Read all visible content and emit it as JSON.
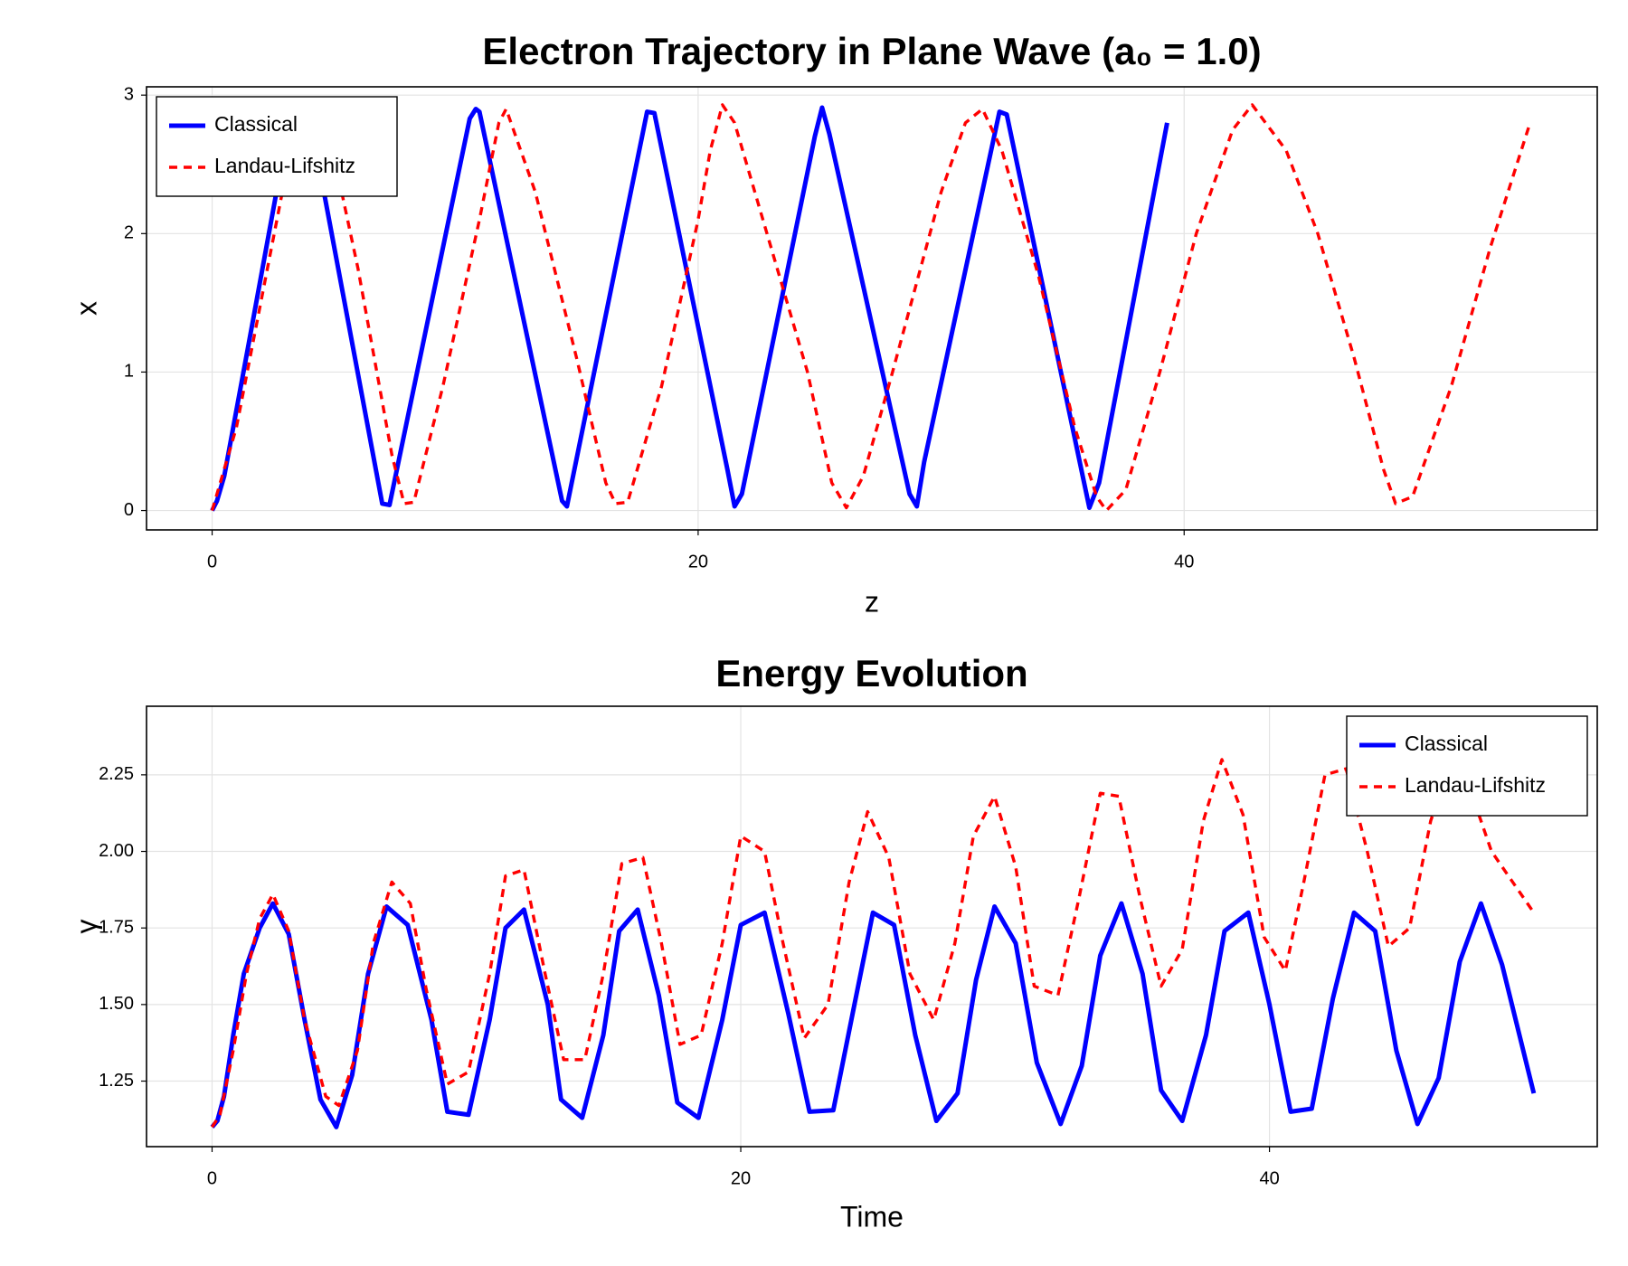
{
  "chart_data": [
    {
      "type": "line",
      "title": "Electron Trajectory in Plane Wave (a₀ = 1.0)",
      "x_label": "z",
      "y_label": "x",
      "xlim": [
        -2.7,
        57.0
      ],
      "ylim": [
        -0.14,
        3.06
      ],
      "xticks": [
        0,
        20,
        40
      ],
      "yticks": [
        0,
        1,
        2,
        3
      ],
      "grid": true,
      "legend": "upper left",
      "series": [
        {
          "name": "Classical",
          "color": "#0000ff",
          "dash": "solid",
          "x": [
            0,
            0.2,
            0.5,
            1.5,
            2.7,
            3.4,
            3.7,
            4.6,
            7.0,
            7.3,
            10.6,
            10.85,
            11.0,
            14.4,
            14.6,
            17.9,
            18.2,
            21.2,
            21.5,
            21.8,
            24.8,
            25.1,
            25.4,
            28.7,
            29.0,
            29.3,
            32.4,
            32.7,
            35.8,
            36.1,
            36.5,
            39.3
          ],
          "values": [
            0,
            0.07,
            0.25,
            1.2,
            2.35,
            2.88,
            2.86,
            2.3,
            0.05,
            0.04,
            2.83,
            2.9,
            2.88,
            0.07,
            0.03,
            2.88,
            2.87,
            0.3,
            0.03,
            0.12,
            2.7,
            2.91,
            2.72,
            0.12,
            0.03,
            0.35,
            2.88,
            2.86,
            0.27,
            0.02,
            0.2,
            2.8
          ]
        },
        {
          "name": "Landau-Lifshitz",
          "color": "#ff0000",
          "dash": "dashed",
          "x": [
            0,
            1,
            2,
            3,
            4.2,
            4.6,
            6,
            7.4,
            7.9,
            8.3,
            9.5,
            11,
            11.8,
            12.1,
            13.3,
            15,
            16.2,
            16.6,
            17.1,
            18.5,
            20,
            20.5,
            21.0,
            21.5,
            23,
            24.5,
            25.5,
            26.1,
            26.8,
            28,
            30,
            31,
            31.7,
            32.5,
            34,
            35.5,
            36.4,
            36.8,
            37.6,
            39,
            40.5,
            42,
            42.8,
            44.2,
            45.5,
            47,
            48.2,
            48.7,
            49.4,
            51,
            52.6,
            54.2
          ],
          "values": [
            0,
            0.6,
            1.5,
            2.4,
            2.85,
            2.9,
            1.75,
            0.4,
            0.05,
            0.06,
            0.9,
            2.1,
            2.8,
            2.9,
            2.3,
            1.1,
            0.2,
            0.05,
            0.06,
            0.9,
            2.1,
            2.6,
            2.93,
            2.8,
            1.9,
            1.0,
            0.2,
            0.02,
            0.25,
            1.0,
            2.3,
            2.8,
            2.9,
            2.6,
            1.7,
            0.6,
            0.1,
            0.0,
            0.15,
            1.0,
            2.0,
            2.75,
            2.93,
            2.6,
            2.0,
            1.1,
            0.3,
            0.05,
            0.1,
            0.9,
            1.9,
            2.78
          ]
        }
      ]
    },
    {
      "type": "line",
      "title": "Energy Evolution",
      "x_label": "Time",
      "y_label": "γ",
      "xlim": [
        -2.48,
        52.4
      ],
      "ylim": [
        1.036,
        2.474
      ],
      "xticks": [
        0,
        20,
        40
      ],
      "yticks": [
        1.25,
        {
          "value": 1.5,
          "label": "1.50"
        },
        1.75,
        {
          "value": 2,
          "label": "2.00"
        },
        2.25
      ],
      "grid": true,
      "legend": "upper right",
      "series": [
        {
          "name": "Classical",
          "color": "#0000ff",
          "dash": "solid",
          "x": [
            0,
            0.2,
            0.45,
            0.8,
            1.2,
            1.8,
            2.3,
            2.9,
            3.5,
            4.1,
            4.7,
            5.3,
            5.9,
            6.6,
            7.4,
            8.3,
            8.9,
            9.7,
            10.5,
            11.1,
            11.8,
            12.7,
            13.2,
            14.0,
            14.8,
            15.4,
            16.1,
            16.9,
            17.6,
            18.4,
            19.3,
            20.0,
            20.9,
            21.8,
            22.6,
            23.5,
            24.3,
            25.0,
            25.8,
            26.6,
            27.4,
            28.2,
            28.9,
            29.6,
            30.4,
            31.2,
            32.1,
            32.9,
            33.6,
            34.4,
            35.2,
            35.9,
            36.7,
            37.6,
            38.3,
            39.2,
            40.0,
            40.8,
            41.6,
            42.4,
            43.2,
            44.0,
            44.8,
            45.6,
            46.4,
            47.2,
            48.0,
            48.8,
            50.0
          ],
          "values": [
            1.1,
            1.12,
            1.2,
            1.4,
            1.6,
            1.75,
            1.83,
            1.73,
            1.45,
            1.19,
            1.1,
            1.27,
            1.6,
            1.82,
            1.76,
            1.45,
            1.15,
            1.14,
            1.45,
            1.75,
            1.81,
            1.5,
            1.19,
            1.13,
            1.4,
            1.74,
            1.81,
            1.53,
            1.18,
            1.13,
            1.45,
            1.76,
            1.8,
            1.47,
            1.15,
            1.155,
            1.5,
            1.8,
            1.76,
            1.4,
            1.12,
            1.21,
            1.58,
            1.82,
            1.7,
            1.31,
            1.11,
            1.3,
            1.66,
            1.83,
            1.6,
            1.22,
            1.12,
            1.4,
            1.74,
            1.8,
            1.5,
            1.15,
            1.16,
            1.52,
            1.8,
            1.74,
            1.35,
            1.11,
            1.26,
            1.64,
            1.83,
            1.63,
            1.21
          ]
        },
        {
          "name": "Landau-Lifshitz",
          "color": "#ff0000",
          "dash": "dashed",
          "x": [
            0,
            0.3,
            0.8,
            1.3,
            1.8,
            2.3,
            2.9,
            3.5,
            4.3,
            4.8,
            5.5,
            6.1,
            6.8,
            7.5,
            8.1,
            8.9,
            9.7,
            10.5,
            11.1,
            11.8,
            12.6,
            13.3,
            14.1,
            14.8,
            15.5,
            16.3,
            17.0,
            17.7,
            18.5,
            19.3,
            20.0,
            20.9,
            21.6,
            22.4,
            23.3,
            24.1,
            24.8,
            25.6,
            26.4,
            27.3,
            28.1,
            28.8,
            29.6,
            30.4,
            31.1,
            32.0,
            32.8,
            33.6,
            34.3,
            35.1,
            35.9,
            36.7,
            37.5,
            38.2,
            39.0,
            39.8,
            40.6,
            41.3,
            42.1,
            42.9,
            43.7,
            44.5,
            45.3,
            46.1,
            46.9,
            47.6,
            48.4,
            50.0
          ],
          "values": [
            1.1,
            1.14,
            1.35,
            1.6,
            1.78,
            1.86,
            1.74,
            1.45,
            1.2,
            1.17,
            1.35,
            1.7,
            1.9,
            1.83,
            1.55,
            1.24,
            1.28,
            1.6,
            1.92,
            1.94,
            1.6,
            1.32,
            1.32,
            1.6,
            1.96,
            1.98,
            1.7,
            1.37,
            1.4,
            1.7,
            2.05,
            2.0,
            1.7,
            1.39,
            1.5,
            1.9,
            2.13,
            1.98,
            1.6,
            1.45,
            1.7,
            2.05,
            2.18,
            1.95,
            1.56,
            1.53,
            1.85,
            2.19,
            2.18,
            1.85,
            1.56,
            1.68,
            2.1,
            2.3,
            2.12,
            1.72,
            1.61,
            1.9,
            2.25,
            2.27,
            2.0,
            1.69,
            1.75,
            2.1,
            2.3,
            2.2,
            2.0,
            1.8
          ]
        }
      ]
    }
  ]
}
